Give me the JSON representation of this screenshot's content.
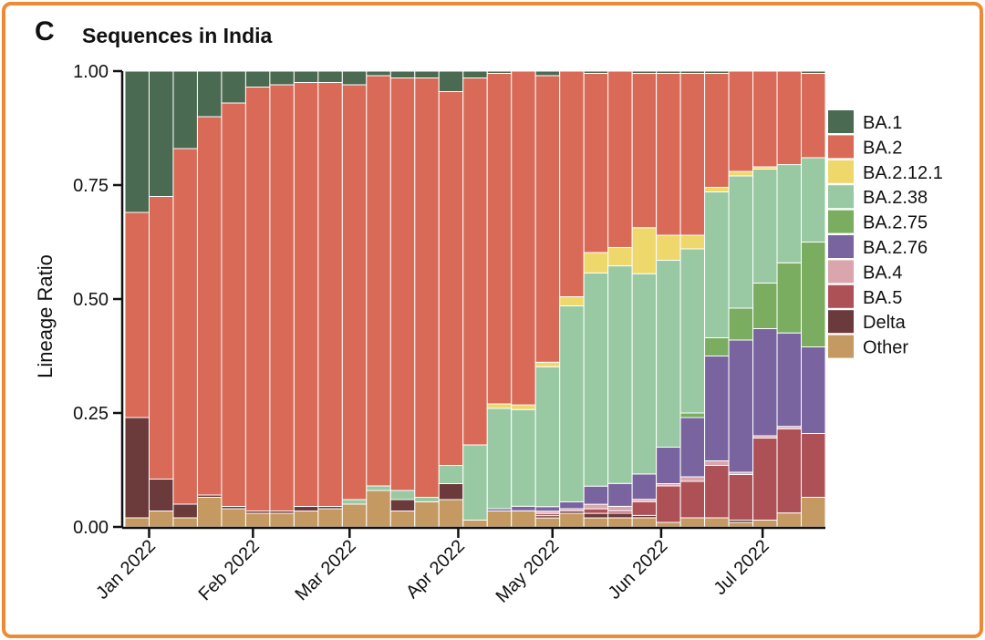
{
  "panel_label": "C",
  "chart_data": {
    "type": "bar",
    "stacked": true,
    "title": "Sequences in India",
    "ylabel": "Lineage Ratio",
    "xlabel": "",
    "ylim": [
      0,
      1
    ],
    "yticks": [
      "0.00",
      "0.25",
      "0.50",
      "0.75",
      "1.00"
    ],
    "ytick_values": [
      0,
      0.25,
      0.5,
      0.75,
      1.0
    ],
    "month_labels": [
      "Jan 2022",
      "Feb 2022",
      "Mar 2022",
      "Apr 2022",
      "May 2022",
      "Jun 2022",
      "Jul 2022"
    ],
    "month_label_positions": [
      1.0,
      5.3,
      9.3,
      13.8,
      17.7,
      22.2,
      26.4
    ],
    "legend_position": "right",
    "series": [
      {
        "name": "Other",
        "color": "#c49a62",
        "values": [
          0.02,
          0.035,
          0.02,
          0.065,
          0.04,
          0.03,
          0.03,
          0.035,
          0.04,
          0.05,
          0.08,
          0.035,
          0.055,
          0.06,
          0.015,
          0.035,
          0.035,
          0.02,
          0.03,
          0.02,
          0.02,
          0.02,
          0.01,
          0.02,
          0.02,
          0.01,
          0.015,
          0.03,
          0.065
        ]
      },
      {
        "name": "Delta",
        "color": "#6b3a3b",
        "values": [
          0.22,
          0.07,
          0.03,
          0.005,
          0.005,
          0.005,
          0.005,
          0.01,
          0.005,
          0,
          0,
          0.025,
          0,
          0.035,
          0,
          0,
          0,
          0.005,
          0.005,
          0.01,
          0.01,
          0.005,
          0,
          0,
          0,
          0.005,
          0,
          0,
          0
        ]
      },
      {
        "name": "BA.5",
        "color": "#ad5157",
        "values": [
          0,
          0,
          0,
          0,
          0,
          0,
          0,
          0,
          0,
          0,
          0,
          0,
          0,
          0,
          0,
          0,
          0,
          0.005,
          0,
          0.01,
          0.005,
          0.03,
          0.08,
          0.08,
          0.115,
          0.1,
          0.18,
          0.18,
          0.14
        ]
      },
      {
        "name": "BA.4",
        "color": "#dba5ae",
        "values": [
          0,
          0,
          0,
          0,
          0,
          0,
          0,
          0,
          0,
          0,
          0,
          0,
          0,
          0,
          0,
          0,
          0,
          0.005,
          0.005,
          0.01,
          0.01,
          0.005,
          0.005,
          0.01,
          0.01,
          0.005,
          0.005,
          0.005,
          0
        ]
      },
      {
        "name": "BA.2.76",
        "color": "#7a64a0",
        "values": [
          0,
          0,
          0,
          0,
          0,
          0,
          0,
          0,
          0,
          0,
          0,
          0,
          0,
          0,
          0,
          0.005,
          0.01,
          0.01,
          0.015,
          0.04,
          0.05,
          0.055,
          0.08,
          0.13,
          0.23,
          0.29,
          0.235,
          0.2,
          0.19
        ]
      },
      {
        "name": "BA.2.75",
        "color": "#7aad60",
        "values": [
          0,
          0,
          0,
          0,
          0,
          0,
          0,
          0,
          0,
          0,
          0,
          0,
          0,
          0,
          0,
          0,
          0,
          0,
          0,
          0,
          0,
          0,
          0,
          0.01,
          0.04,
          0.07,
          0.1,
          0.15,
          0.23
        ]
      },
      {
        "name": "BA.2.38",
        "color": "#98c9a3",
        "values": [
          0,
          0,
          0,
          0,
          0,
          0,
          0,
          0,
          0,
          0.01,
          0.01,
          0.02,
          0.01,
          0.04,
          0.165,
          0.22,
          0.21,
          0.31,
          0.43,
          0.47,
          0.475,
          0.435,
          0.41,
          0.36,
          0.32,
          0.29,
          0.25,
          0.21,
          0.185
        ]
      },
      {
        "name": "BA.2.12.1",
        "color": "#efd86b",
        "values": [
          0,
          0,
          0,
          0,
          0,
          0,
          0,
          0,
          0,
          0,
          0,
          0,
          0,
          0,
          0,
          0.01,
          0.01,
          0.01,
          0.02,
          0.045,
          0.04,
          0.1,
          0.055,
          0.03,
          0.01,
          0.01,
          0.005,
          0,
          0
        ]
      },
      {
        "name": "BA.2",
        "color": "#d86a57",
        "values": [
          0.45,
          0.62,
          0.78,
          0.83,
          0.885,
          0.93,
          0.935,
          0.93,
          0.93,
          0.91,
          0.9,
          0.905,
          0.92,
          0.82,
          0.805,
          0.725,
          0.725,
          0.635,
          0.495,
          0.395,
          0.385,
          0.335,
          0.355,
          0.355,
          0.25,
          0.22,
          0.21,
          0.2,
          0.185
        ]
      },
      {
        "name": "BA.1",
        "color": "#4b6a52",
        "values": [
          0.31,
          0.275,
          0.17,
          0.1,
          0.07,
          0.035,
          0.03,
          0.025,
          0.025,
          0.03,
          0.01,
          0.015,
          0.015,
          0.045,
          0.015,
          0.005,
          0,
          0.01,
          0,
          0.005,
          0,
          0.005,
          0.005,
          0.005,
          0.005,
          0,
          0,
          0,
          0.005
        ]
      }
    ],
    "legend_order": [
      "BA.1",
      "BA.2",
      "BA.2.12.1",
      "BA.2.38",
      "BA.2.75",
      "BA.2.76",
      "BA.4",
      "BA.5",
      "Delta",
      "Other"
    ]
  }
}
